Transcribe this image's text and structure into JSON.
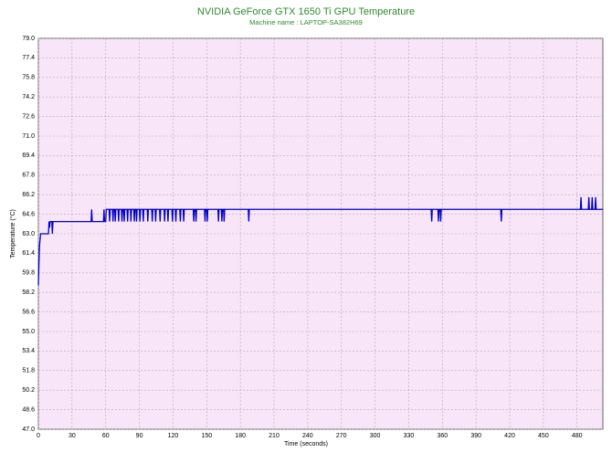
{
  "chart_data": {
    "type": "line",
    "title": "NVIDIA GeForce GTX 1650 Ti GPU Temperature",
    "subtitle": "Machine name : LAPTOP-SA382H69",
    "x_label": "Time (seconds)",
    "y_label": "Temperature (°C)",
    "color": "#0000c8",
    "grid": true,
    "xlim": [
      0,
      503
    ],
    "ylim": [
      47,
      79
    ],
    "xticks": [
      0,
      30,
      60,
      90,
      120,
      150,
      180,
      210,
      240,
      270,
      300,
      330,
      360,
      390,
      420,
      450,
      480
    ],
    "yticks": [
      {
        "value": 47,
        "label": "47.0"
      },
      48.6,
      50.2,
      51.8,
      53.4,
      {
        "value": 55,
        "label": "55.0"
      },
      56.6,
      58.2,
      59.8,
      61.4,
      {
        "value": 63,
        "label": "63.0"
      },
      64.6,
      66.2,
      67.8,
      69.4,
      {
        "value": 71,
        "label": "71.0"
      },
      72.6,
      74.2,
      75.8,
      77.4,
      {
        "value": 79,
        "label": "79.0"
      }
    ],
    "x": [
      0,
      0.5,
      1,
      2,
      9,
      9.5,
      10,
      10.5,
      12,
      12.5,
      13,
      47,
      47.5,
      48,
      58,
      58.5,
      59,
      60,
      60.5,
      63,
      63.5,
      64,
      66,
      66.5,
      67,
      68,
      68.5,
      69,
      71,
      71.5,
      72,
      74,
      74.5,
      75,
      76,
      76.5,
      77,
      79,
      79.5,
      80,
      82,
      82.5,
      83,
      85,
      85.5,
      86,
      87,
      87.5,
      88,
      90,
      90.5,
      91,
      93,
      93.5,
      94,
      97,
      97.5,
      98,
      101,
      101.5,
      102,
      104,
      104.5,
      105,
      108,
      108.5,
      109,
      112,
      112.5,
      113,
      115,
      115.5,
      116,
      119,
      119.5,
      120,
      122,
      122.5,
      123,
      126,
      126.5,
      127,
      129,
      129.5,
      130,
      138,
      138.5,
      139,
      140,
      140.5,
      141,
      148,
      148.5,
      149,
      150,
      150.5,
      151,
      160,
      160.5,
      161,
      163,
      163.5,
      164,
      165,
      165.5,
      166,
      187,
      187.5,
      188,
      350,
      350.5,
      351,
      356,
      356.5,
      357,
      358,
      358.5,
      359,
      412,
      412.5,
      413,
      483,
      483.5,
      484,
      490,
      490.5,
      491,
      493,
      493.5,
      494,
      496,
      496.5,
      497,
      503
    ],
    "values": [
      58.8,
      60.5,
      62,
      63,
      63,
      64,
      63.5,
      64,
      64,
      63,
      64,
      64,
      65,
      64,
      64,
      65,
      64,
      64,
      65,
      65,
      64,
      65,
      65,
      64,
      65,
      65,
      64,
      65,
      65,
      64,
      65,
      65,
      64,
      65,
      65,
      64,
      65,
      65,
      64,
      65,
      65,
      64,
      65,
      65,
      64,
      65,
      65,
      64,
      65,
      65,
      64,
      65,
      65,
      64,
      65,
      65,
      64,
      65,
      65,
      64,
      65,
      65,
      64,
      65,
      65,
      64,
      65,
      65,
      64,
      65,
      65,
      64,
      65,
      65,
      64,
      65,
      65,
      64,
      65,
      65,
      64,
      65,
      65,
      64,
      65,
      65,
      64,
      65,
      65,
      64,
      65,
      65,
      64,
      65,
      65,
      64,
      65,
      65,
      64,
      65,
      65,
      64,
      65,
      65,
      64,
      65,
      65,
      64,
      65,
      65,
      64,
      65,
      65,
      64,
      65,
      65,
      64,
      65,
      65,
      64,
      65,
      65,
      66,
      65,
      65,
      66,
      65,
      65,
      66,
      65,
      65,
      66,
      65,
      65
    ]
  }
}
